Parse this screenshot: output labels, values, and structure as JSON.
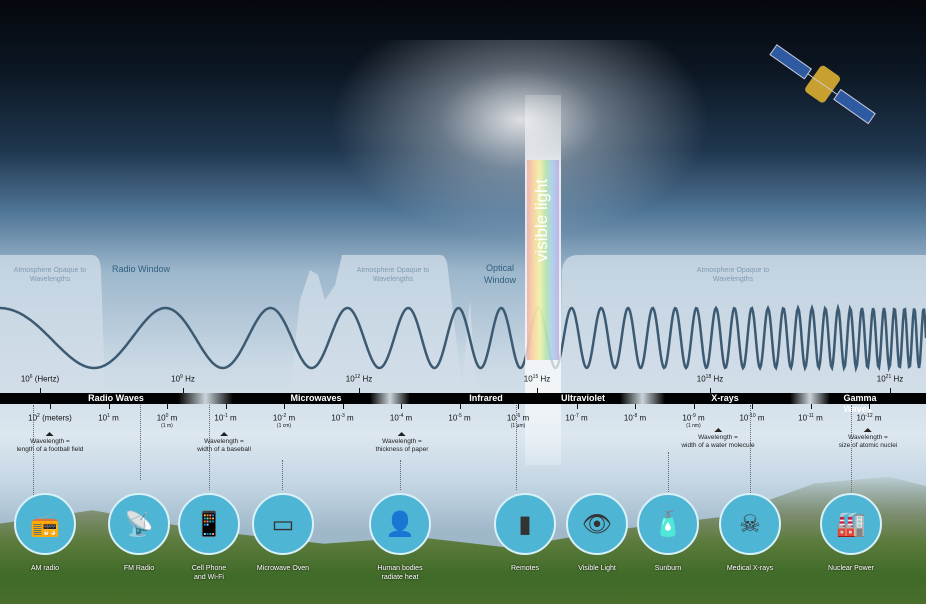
{
  "atmosphere": {
    "opaque_label": "Atmosphere Opaque to Wavelengths",
    "radio_window": "Radio Window",
    "optical_window": "Optical Window"
  },
  "visible_light_label": "visible light",
  "bands": [
    "Radio Waves",
    "Microwaves",
    "Infrared",
    "Ultraviolet",
    "X-rays",
    "Gamma Waves"
  ],
  "frequencies": [
    {
      "base": "10",
      "exp": "6",
      "unit": "(Hertz)"
    },
    {
      "base": "10",
      "exp": "9",
      "unit": "Hz"
    },
    {
      "base": "10",
      "exp": "12",
      "unit": "Hz"
    },
    {
      "base": "10",
      "exp": "15",
      "unit": "Hz"
    },
    {
      "base": "10",
      "exp": "18",
      "unit": "Hz"
    },
    {
      "base": "10",
      "exp": "21",
      "unit": "Hz"
    }
  ],
  "wavelengths": [
    {
      "base": "10",
      "exp": "2",
      "unit": "(meters)",
      "note": ""
    },
    {
      "base": "10",
      "exp": "1",
      "unit": "m",
      "note": ""
    },
    {
      "base": "10",
      "exp": "0",
      "unit": "m",
      "note": "(1 m)"
    },
    {
      "base": "10",
      "exp": "-1",
      "unit": "m",
      "note": ""
    },
    {
      "base": "10",
      "exp": "-2",
      "unit": "m",
      "note": "(1 cm)"
    },
    {
      "base": "10",
      "exp": "-3",
      "unit": "m",
      "note": ""
    },
    {
      "base": "10",
      "exp": "-4",
      "unit": "m",
      "note": ""
    },
    {
      "base": "10",
      "exp": "-5",
      "unit": "m",
      "note": ""
    },
    {
      "base": "10",
      "exp": "-6",
      "unit": "m",
      "note": "(1 µm)"
    },
    {
      "base": "10",
      "exp": "-7",
      "unit": "m",
      "note": ""
    },
    {
      "base": "10",
      "exp": "-8",
      "unit": "m",
      "note": ""
    },
    {
      "base": "10",
      "exp": "-9",
      "unit": "m",
      "note": "(1 nm)"
    },
    {
      "base": "10",
      "exp": "-10",
      "unit": "m",
      "note": ""
    },
    {
      "base": "10",
      "exp": "-11",
      "unit": "m",
      "note": ""
    },
    {
      "base": "10",
      "exp": "-12",
      "unit": "m",
      "note": ""
    }
  ],
  "comparisons": [
    {
      "l1": "Wavelength =",
      "l2": "length of a football field"
    },
    {
      "l1": "Wavelength =",
      "l2": "width of a baseball"
    },
    {
      "l1": "Wavelength =",
      "l2": "thickness of paper"
    },
    {
      "l1": "Wavelength =",
      "l2": "width of a water molecule"
    },
    {
      "l1": "Wavelength =",
      "l2": "size of atomic nuclei"
    }
  ],
  "examples": [
    {
      "l1": "AM radio",
      "l2": "",
      "icon": "📻"
    },
    {
      "l1": "FM Radio",
      "l2": "",
      "icon": "📡"
    },
    {
      "l1": "Cell Phone",
      "l2": "and Wi-Fi",
      "icon": "📱"
    },
    {
      "l1": "Microwave Oven",
      "l2": "",
      "icon": "▭"
    },
    {
      "l1": "Human bodies",
      "l2": "radiate heat",
      "icon": "👤"
    },
    {
      "l1": "Remotes",
      "l2": "",
      "icon": "▮"
    },
    {
      "l1": "Visible Light",
      "l2": "",
      "icon": "👁"
    },
    {
      "l1": "Sunburn",
      "l2": "",
      "icon": "🧴"
    },
    {
      "l1": "Medical X-rays",
      "l2": "",
      "icon": "☠"
    },
    {
      "l1": "Nuclear Power",
      "l2": "",
      "icon": "🏭"
    }
  ],
  "colors": {
    "wave": "#3c5a72",
    "circle": "#4fb5d4",
    "bar": "#000000"
  }
}
